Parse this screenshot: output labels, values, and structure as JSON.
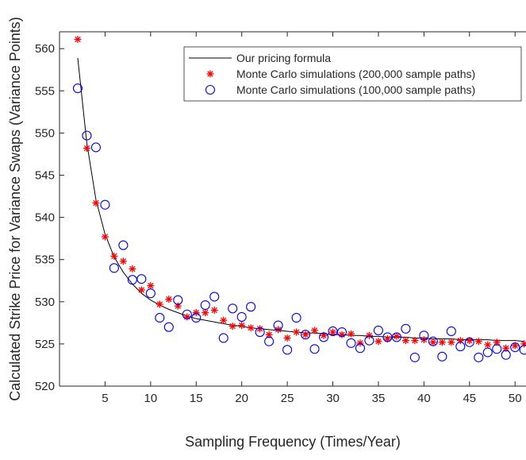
{
  "chart_data": {
    "type": "scatter",
    "xlabel": "Sampling Frequency (Times/Year)",
    "ylabel": "Calculated Strike Price for Variance Swaps (Variance Points)",
    "xlim": [
      0,
      51.2
    ],
    "ylim": [
      520,
      562
    ],
    "x_ticks": [
      "5",
      "10",
      "15",
      "20",
      "25",
      "30",
      "35",
      "40",
      "45",
      "50"
    ],
    "y_ticks": [
      "520",
      "525",
      "530",
      "535",
      "540",
      "545",
      "550",
      "555",
      "560"
    ],
    "legend_position": "top-right",
    "series": [
      {
        "name": "Our pricing formula",
        "kind": "line",
        "color": "#000000",
        "x": [
          2,
          3,
          4,
          5,
          6,
          7,
          8,
          9,
          10,
          11,
          12,
          13,
          14,
          15,
          16,
          17,
          18,
          19,
          20,
          21,
          22,
          23,
          24,
          25,
          26,
          27,
          28,
          29,
          30,
          31,
          32,
          33,
          34,
          35,
          36,
          37,
          38,
          39,
          40,
          41,
          42,
          43,
          44,
          45,
          46,
          47,
          48,
          49,
          50,
          51
        ],
        "y": [
          558.9,
          548.8,
          542.1,
          538.0,
          535.3,
          533.5,
          532.1,
          531.0,
          530.2,
          529.6,
          529.1,
          528.7,
          528.3,
          528.0,
          527.8,
          527.6,
          527.4,
          527.2,
          527.1,
          526.9,
          526.8,
          526.7,
          526.6,
          526.5,
          526.4,
          526.3,
          526.3,
          526.2,
          526.1,
          526.1,
          526.0,
          526.0,
          525.9,
          525.9,
          525.8,
          525.8,
          525.8,
          525.7,
          525.7,
          525.6,
          525.6,
          525.6,
          525.5,
          525.5,
          525.5,
          525.5,
          525.4,
          525.4,
          525.4,
          525.3
        ]
      },
      {
        "name": "Monte Carlo simulations (200,000 sample paths)",
        "kind": "star",
        "color": "#ff0000",
        "x": [
          2,
          3,
          4,
          5,
          6,
          7,
          8,
          9,
          10,
          11,
          12,
          13,
          14,
          15,
          16,
          17,
          18,
          19,
          20,
          21,
          22,
          23,
          24,
          25,
          26,
          27,
          28,
          29,
          30,
          31,
          32,
          33,
          34,
          35,
          36,
          37,
          38,
          39,
          40,
          41,
          42,
          43,
          44,
          45,
          46,
          47,
          48,
          49,
          50,
          51
        ],
        "y": [
          561.1,
          548.2,
          541.7,
          537.7,
          535.4,
          534.8,
          533.9,
          531.4,
          531.9,
          529.7,
          530.3,
          529.5,
          528.2,
          528.7,
          528.7,
          529.0,
          527.8,
          527.1,
          527.2,
          526.9,
          526.8,
          526.1,
          526.7,
          525.7,
          526.4,
          526.1,
          526.6,
          526.0,
          526.4,
          526.1,
          526.2,
          525.1,
          526.0,
          525.3,
          525.6,
          525.9,
          525.4,
          525.4,
          525.5,
          525.2,
          525.2,
          525.2,
          525.4,
          525.4,
          525.3,
          524.9,
          525.2,
          524.5,
          524.8,
          525.0
        ]
      },
      {
        "name": "Monte Carlo simulations (100,000 sample paths)",
        "kind": "circle",
        "color": "#0000ff",
        "x": [
          2,
          3,
          4,
          5,
          6,
          7,
          8,
          9,
          10,
          11,
          12,
          13,
          14,
          15,
          16,
          17,
          18,
          19,
          20,
          21,
          22,
          23,
          24,
          25,
          26,
          27,
          28,
          29,
          30,
          31,
          32,
          33,
          34,
          35,
          36,
          37,
          38,
          39,
          40,
          41,
          42,
          43,
          44,
          45,
          46,
          47,
          48,
          49,
          50,
          51
        ],
        "y": [
          555.3,
          549.7,
          548.3,
          541.5,
          534.0,
          536.7,
          532.6,
          532.7,
          531.0,
          528.1,
          527.0,
          530.2,
          528.5,
          528.1,
          529.6,
          530.6,
          525.7,
          529.2,
          528.2,
          529.4,
          526.4,
          525.3,
          527.2,
          524.3,
          528.1,
          526.1,
          524.4,
          525.8,
          526.5,
          526.4,
          525.1,
          524.5,
          525.4,
          526.6,
          525.8,
          525.8,
          526.8,
          523.4,
          526.0,
          525.3,
          523.5,
          526.5,
          524.7,
          525.2,
          523.4,
          524.0,
          524.4,
          523.7,
          524.6,
          524.3
        ]
      }
    ]
  }
}
